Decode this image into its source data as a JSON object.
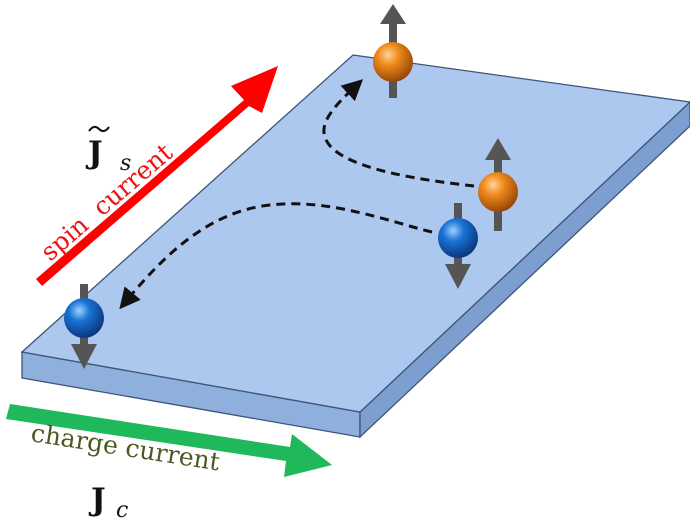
{
  "labels": {
    "spin_current": "spin  current",
    "charge_current": "charge current",
    "spin_symbol": "J",
    "spin_subscript": "s",
    "charge_symbol": "J",
    "charge_subscript": "c"
  },
  "colors": {
    "slab_top": "#adc8ee",
    "slab_front": "#8fb0dc",
    "slab_side": "#7d9fcf",
    "spin_arrow": "#ff0000",
    "spin_label": "#ee1111",
    "charge_arrow": "#1fb85a",
    "charge_label": "#4c5a22",
    "spin_up_ball": "#e57c12",
    "spin_down_ball": "#1666c4",
    "spin_vector": "#555555",
    "trajectory": "#111111"
  },
  "particles": [
    {
      "name": "orange-particle-top",
      "spin": "up",
      "kind": "orange"
    },
    {
      "name": "orange-particle-right",
      "spin": "up",
      "kind": "orange"
    },
    {
      "name": "blue-particle-right",
      "spin": "down",
      "kind": "blue"
    },
    {
      "name": "blue-particle-left",
      "spin": "down",
      "kind": "blue"
    }
  ]
}
